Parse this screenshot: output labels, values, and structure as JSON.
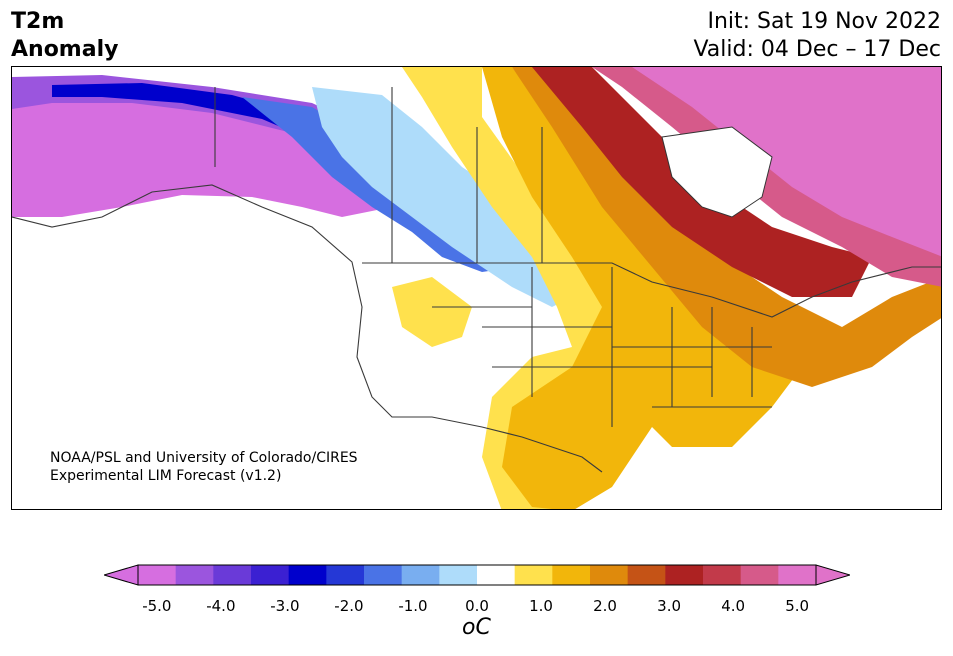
{
  "header": {
    "title_line1": "T2m",
    "title_line2": "Anomaly",
    "init": "Init: Sat 19 Nov 2022",
    "valid": "Valid: 04 Dec – 17 Dec"
  },
  "credit": {
    "line1": "NOAA/PSL and University of Colorado/CIRES",
    "line2": "Experimental LIM Forecast (v1.2)"
  },
  "colorbar": {
    "units_label": "oC",
    "tick_labels": [
      "-5.0",
      "-4.0",
      "-3.0",
      "-2.0",
      "-1.0",
      "0.0",
      "1.0",
      "2.0",
      "3.0",
      "4.0",
      "5.0"
    ],
    "colors": [
      "#d66ee0",
      "#9b55de",
      "#6a3ad8",
      "#3b20d2",
      "#0000cc",
      "#2538d6",
      "#4a73e6",
      "#79aef0",
      "#aedcfa",
      "#ffffff",
      "#ffe14d",
      "#f2b60b",
      "#df8a0c",
      "#c55316",
      "#ad2222",
      "#c23a4a",
      "#d65a8a",
      "#e072c9"
    ]
  },
  "map": {
    "region": "North America",
    "variable": "2m temperature anomaly",
    "colors": {
      "cold_extreme": "#d66ee0",
      "cold_deep": "#0000cc",
      "cold_light": "#aedcfa",
      "neutral": "#ffffff",
      "warm_light": "#ffe14d",
      "warm": "#f2b60b",
      "warm_strong": "#df8a0c",
      "hot": "#ad2222",
      "hot_extreme": "#e072c9"
    }
  }
}
